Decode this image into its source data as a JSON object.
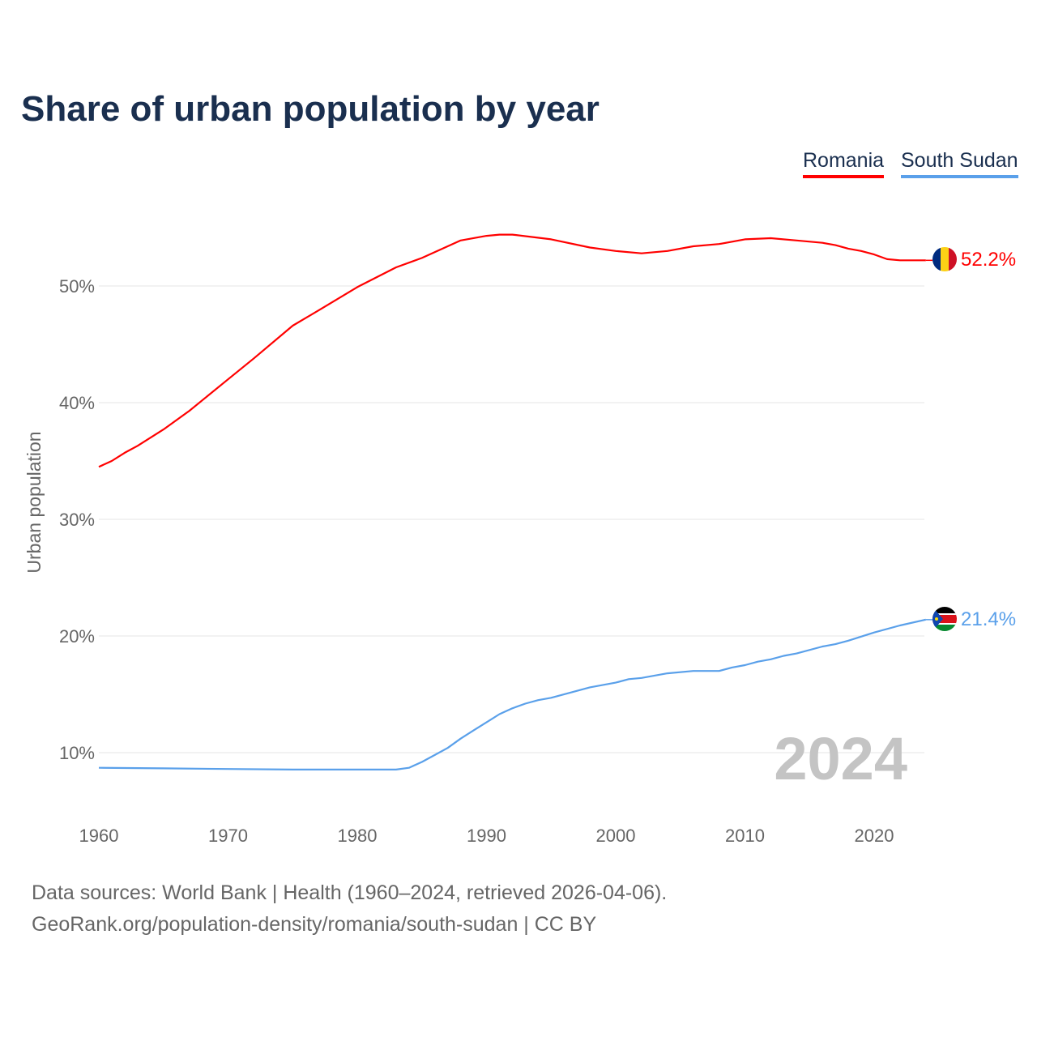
{
  "chart_data": {
    "type": "line",
    "title": "Share of urban population by year",
    "xlabel": "",
    "ylabel": "Urban population",
    "xlim": [
      1960,
      2024
    ],
    "ylim": [
      5,
      57
    ],
    "yticks": [
      10,
      20,
      30,
      40,
      50
    ],
    "ytick_labels": [
      "10%",
      "20%",
      "30%",
      "40%",
      "50%"
    ],
    "xticks": [
      1960,
      1970,
      1980,
      1990,
      2000,
      2010,
      2020
    ],
    "xtick_labels": [
      "1960",
      "1970",
      "1980",
      "1990",
      "2000",
      "2010",
      "2020"
    ],
    "grid": true,
    "legend_position": "top-right",
    "watermark_year": "2024",
    "series": [
      {
        "name": "Romania",
        "color": "#ff0000",
        "end_label": "52.2%",
        "x": [
          1960,
          1961,
          1962,
          1963,
          1965,
          1967,
          1970,
          1972,
          1975,
          1977,
          1980,
          1983,
          1985,
          1988,
          1990,
          1991,
          1992,
          1995,
          1998,
          2000,
          2002,
          2004,
          2006,
          2008,
          2010,
          2012,
          2014,
          2016,
          2017,
          2018,
          2019,
          2020,
          2021,
          2022,
          2023,
          2024
        ],
        "values": [
          34.5,
          35.0,
          35.7,
          36.3,
          37.7,
          39.3,
          42.0,
          43.8,
          46.6,
          47.9,
          49.9,
          51.6,
          52.4,
          53.9,
          54.3,
          54.4,
          54.4,
          54.0,
          53.3,
          53.0,
          52.8,
          53.0,
          53.4,
          53.6,
          54.0,
          54.1,
          53.9,
          53.7,
          53.5,
          53.2,
          53.0,
          52.7,
          52.3,
          52.2,
          52.2,
          52.2
        ]
      },
      {
        "name": "South Sudan",
        "color": "#5aa0ea",
        "end_label": "21.4%",
        "x": [
          1960,
          1965,
          1970,
          1975,
          1980,
          1983,
          1984,
          1985,
          1986,
          1987,
          1988,
          1989,
          1990,
          1991,
          1992,
          1993,
          1994,
          1995,
          1998,
          2000,
          2001,
          2002,
          2004,
          2006,
          2008,
          2009,
          2010,
          2011,
          2012,
          2013,
          2014,
          2016,
          2017,
          2018,
          2020,
          2022,
          2024
        ],
        "values": [
          8.7,
          8.65,
          8.6,
          8.55,
          8.55,
          8.55,
          8.7,
          9.2,
          9.8,
          10.4,
          11.2,
          11.9,
          12.6,
          13.3,
          13.8,
          14.2,
          14.5,
          14.7,
          15.6,
          16.0,
          16.3,
          16.4,
          16.8,
          17.0,
          17.0,
          17.3,
          17.5,
          17.8,
          18.0,
          18.3,
          18.5,
          19.1,
          19.3,
          19.6,
          20.3,
          20.9,
          21.4
        ]
      }
    ]
  },
  "footer": {
    "source_line": "Data sources: World Bank | Health (1960–2024, retrieved 2026-04-06).",
    "credit_line": "GeoRank.org/population-density/romania/south-sudan | CC BY"
  }
}
